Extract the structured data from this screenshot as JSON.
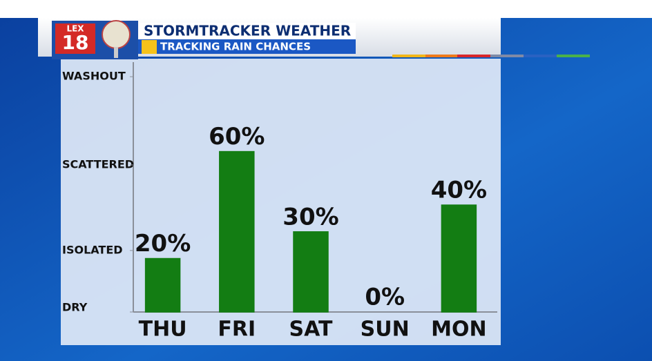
{
  "logo": {
    "station": "LEX",
    "number": "18"
  },
  "chart_data": {
    "type": "bar",
    "title": "STORMTRACKER WEATHER",
    "subtitle": "TRACKING RAIN CHANCES",
    "categories": [
      "THU",
      "FRI",
      "SAT",
      "SUN",
      "MON"
    ],
    "values": [
      20,
      60,
      30,
      0,
      40
    ],
    "value_labels": [
      "20%",
      "60%",
      "30%",
      "0%",
      "40%"
    ],
    "color": "#137d13",
    "ylim": [
      0,
      95
    ],
    "yticks": [
      {
        "value": 0,
        "label": "DRY"
      },
      {
        "value": 23,
        "label": "ISOLATED"
      },
      {
        "value": 55,
        "label": "SCATTERED"
      },
      {
        "value": 88,
        "label": "WASHOUT"
      }
    ]
  }
}
